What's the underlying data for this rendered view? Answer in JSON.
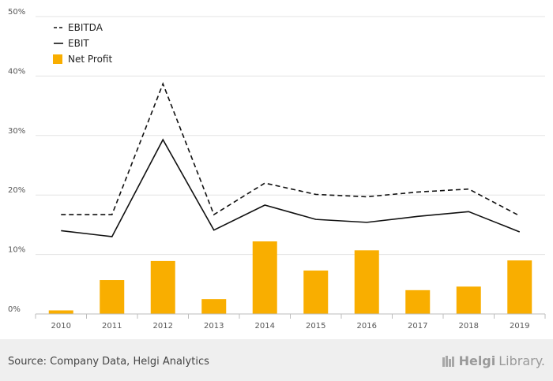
{
  "chart_data": {
    "type": "bar",
    "title": "",
    "xlabel": "",
    "ylabel": "",
    "ylim": [
      0,
      50
    ],
    "yticks": [
      "0%",
      "10%",
      "20%",
      "30%",
      "40%",
      "50%"
    ],
    "categories": [
      "2010",
      "2011",
      "2012",
      "2013",
      "2014",
      "2015",
      "2016",
      "2017",
      "2018",
      "2019"
    ],
    "series": [
      {
        "name": "EBITDA",
        "kind": "line",
        "style": "dashed",
        "color": "#111111",
        "values": [
          16.7,
          16.7,
          38.7,
          16.7,
          22.0,
          20.1,
          19.7,
          20.5,
          21.0,
          16.5
        ]
      },
      {
        "name": "EBIT",
        "kind": "line",
        "style": "solid",
        "color": "#111111",
        "values": [
          14.0,
          13.0,
          29.3,
          14.1,
          18.3,
          15.9,
          15.4,
          16.4,
          17.2,
          13.8
        ]
      },
      {
        "name": "Net Profit",
        "kind": "bar",
        "color": "#f9ae00",
        "values": [
          0.6,
          5.7,
          8.9,
          2.5,
          12.2,
          7.3,
          10.7,
          4.0,
          4.6,
          9.0
        ]
      }
    ],
    "grid": true,
    "legend_position": "top-left"
  },
  "footer": {
    "source": "Source: Company Data, Helgi Analytics",
    "brand_prefix": "Helgi",
    "brand_suffix": "Library."
  }
}
